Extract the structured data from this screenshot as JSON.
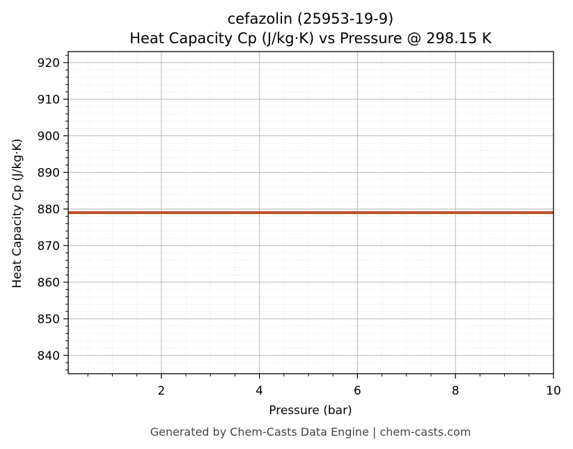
{
  "chart_data": {
    "type": "line",
    "title": "cefazolin (25953-19-9)",
    "subtitle": "Heat Capacity Cp (J/kg·K) vs Pressure @ 298.15 K",
    "xlabel": "Pressure (bar)",
    "ylabel": "Heat Capacity Cp (J/kg·K)",
    "xlim": [
      0.1,
      10
    ],
    "ylim": [
      835,
      923
    ],
    "xticks": [
      2,
      4,
      6,
      8,
      10
    ],
    "yticks": [
      840,
      850,
      860,
      870,
      880,
      890,
      900,
      910,
      920
    ],
    "grid": true,
    "series": [
      {
        "color": "#c0522a",
        "x": [
          0.1,
          10
        ],
        "y": [
          879,
          879
        ]
      }
    ]
  },
  "footer": "Generated by Chem-Casts Data Engine | chem-casts.com"
}
